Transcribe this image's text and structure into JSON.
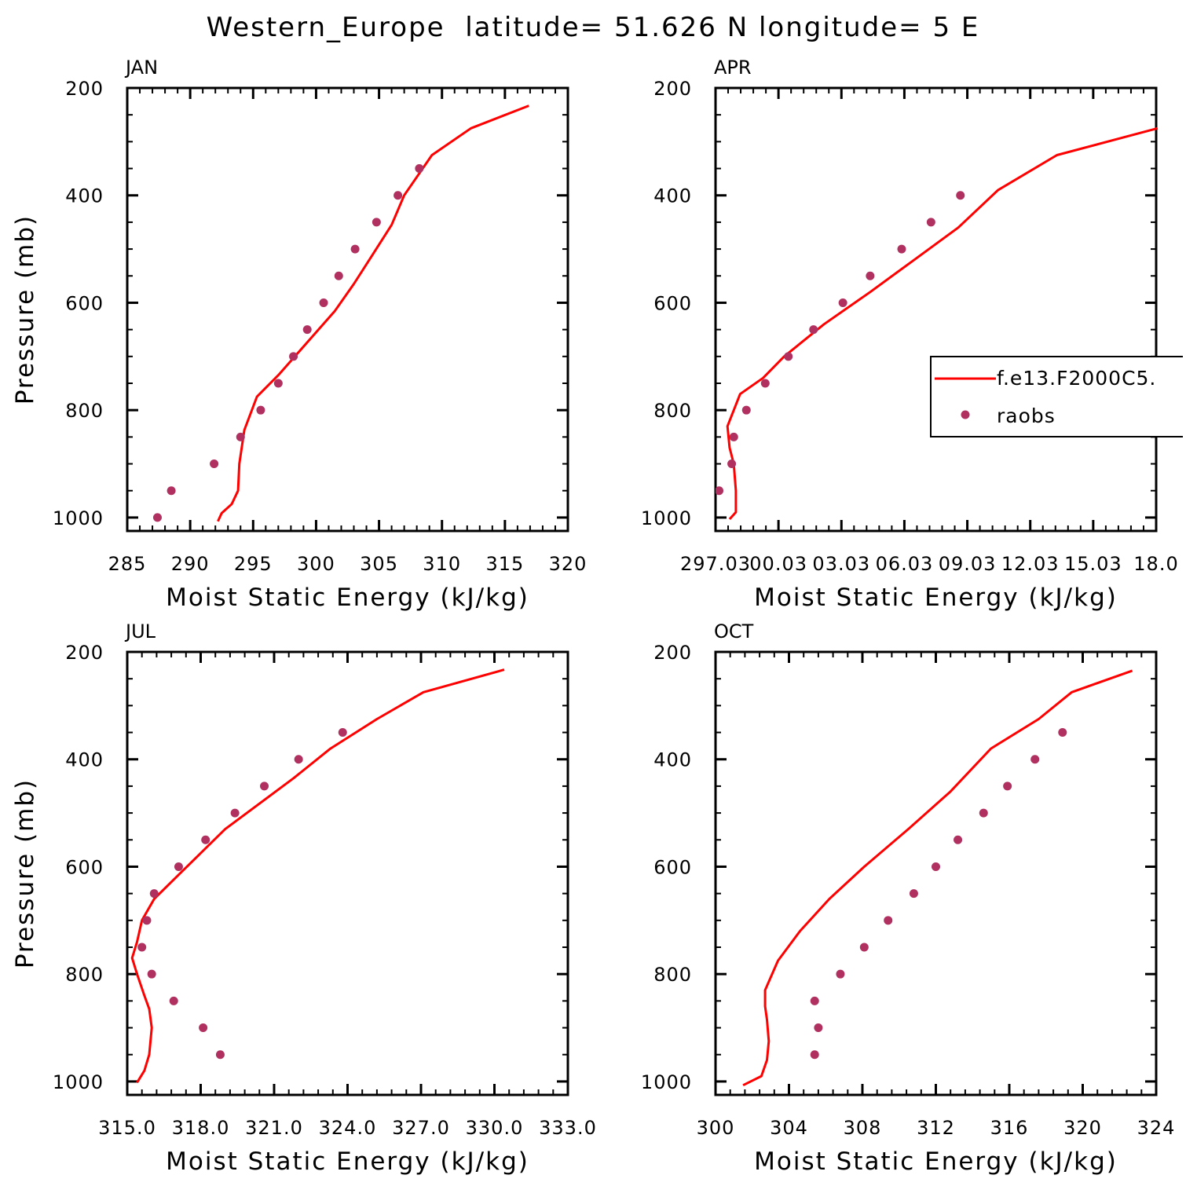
{
  "title": "Western_Europe  latitude= 51.626 N longitude= 5 E",
  "colors": {
    "model": "#ff0000",
    "obs": "#b03060",
    "axis": "#000000"
  },
  "legend": {
    "panel": 1,
    "entries": [
      {
        "label": "f.e13.F2000C5.",
        "style": "line"
      },
      {
        "label": "raobs",
        "style": "marker"
      }
    ]
  },
  "chart_data": [
    {
      "type": "line+scatter",
      "title": "JAN",
      "xlabel": "Moist Static Energy (kJ/kg)",
      "ylabel": "Pressure (mb)",
      "xlim": [
        285,
        320
      ],
      "ylim": [
        200,
        1025
      ],
      "xticks": [
        "285",
        "290",
        "295",
        "300",
        "305",
        "310",
        "315",
        "320"
      ],
      "yticks": [
        "200",
        "400",
        "600",
        "800",
        "1000"
      ],
      "series": [
        {
          "name": "f.e13.F2000C5.",
          "kind": "line",
          "x": [
            292.2,
            292.5,
            293.3,
            293.8,
            293.9,
            294.3,
            295.3,
            297.0,
            298.5,
            300.0,
            301.5,
            303.0,
            304.5,
            306.0,
            307.0,
            309.2,
            312.3,
            316.9
          ],
          "y": [
            1007,
            992,
            975,
            950,
            900,
            837,
            775,
            735,
            695,
            655,
            615,
            565,
            510,
            455,
            400,
            325,
            275,
            233
          ]
        },
        {
          "name": "raobs",
          "kind": "scatter",
          "x": [
            287.4,
            288.5,
            291.9,
            294.0,
            295.6,
            297.0,
            298.2,
            299.3,
            300.6,
            301.8,
            303.1,
            304.8,
            306.5,
            308.2
          ],
          "y": [
            1000,
            950,
            900,
            850,
            800,
            750,
            700,
            650,
            600,
            550,
            500,
            450,
            400,
            350
          ]
        }
      ]
    },
    {
      "type": "line+scatter",
      "title": "APR",
      "xlabel": "Moist Static Energy (kJ/kg)",
      "ylabel": "",
      "xlim": [
        297.03,
        318.03
      ],
      "ylim": [
        200,
        1025
      ],
      "xticks": [
        "297.03",
        "00.03",
        "03.03",
        "06.03",
        "09.03",
        "12.03",
        "15.03",
        "18.0"
      ],
      "yticks": [
        "200",
        "400",
        "600",
        "800",
        "1000"
      ],
      "series": [
        {
          "name": "f.e13.F2000C5.",
          "kind": "line",
          "x": [
            297.7,
            298.0,
            298.0,
            297.9,
            297.7,
            297.6,
            298.2,
            299.3,
            300.3,
            302.2,
            304.4,
            306.5,
            308.6,
            310.5,
            313.3,
            318.1
          ],
          "y": [
            1003,
            990,
            950,
            900,
            870,
            830,
            770,
            740,
            700,
            640,
            580,
            520,
            460,
            390,
            325,
            275
          ]
        },
        {
          "name": "raobs",
          "kind": "scatter",
          "x": [
            297.2,
            297.8,
            297.9,
            298.5,
            299.4,
            300.5,
            301.7,
            303.1,
            304.4,
            305.9,
            307.3,
            308.7
          ],
          "y": [
            950,
            900,
            850,
            800,
            750,
            700,
            650,
            600,
            550,
            500,
            450,
            400
          ]
        }
      ]
    },
    {
      "type": "line+scatter",
      "title": "JUL",
      "xlabel": "Moist Static Energy (kJ/kg)",
      "ylabel": "Pressure (mb)",
      "xlim": [
        315,
        333
      ],
      "ylim": [
        200,
        1025
      ],
      "xticks": [
        "315.0",
        "318.0",
        "321.0",
        "324.0",
        "327.0",
        "330.0",
        "333.0"
      ],
      "yticks": [
        "200",
        "400",
        "600",
        "800",
        "1000"
      ],
      "series": [
        {
          "name": "f.e13.F2000C5.",
          "kind": "line",
          "x": [
            315.4,
            315.7,
            315.9,
            316.0,
            315.9,
            315.7,
            315.4,
            315.2,
            315.4,
            315.6,
            316.1,
            317.1,
            319.0,
            321.8,
            323.3,
            325.2,
            327.1,
            330.4
          ],
          "y": [
            1002,
            980,
            950,
            900,
            865,
            840,
            800,
            770,
            740,
            700,
            660,
            615,
            530,
            435,
            380,
            325,
            275,
            233
          ]
        },
        {
          "name": "raobs",
          "kind": "scatter",
          "x": [
            318.8,
            318.1,
            316.9,
            316.0,
            315.6,
            315.8,
            316.1,
            317.1,
            318.2,
            319.4,
            320.6,
            322.0,
            323.8
          ],
          "y": [
            950,
            900,
            850,
            800,
            750,
            700,
            650,
            600,
            550,
            500,
            450,
            400,
            350
          ]
        }
      ]
    },
    {
      "type": "line+scatter",
      "title": "OCT",
      "xlabel": "Moist Static Energy (kJ/kg)",
      "ylabel": "",
      "xlim": [
        300,
        324
      ],
      "ylim": [
        200,
        1025
      ],
      "xticks": [
        "300",
        "304",
        "308",
        "312",
        "316",
        "320",
        "324"
      ],
      "yticks": [
        "200",
        "400",
        "600",
        "800",
        "1000"
      ],
      "series": [
        {
          "name": "f.e13.F2000C5.",
          "kind": "line",
          "x": [
            301.5,
            302.5,
            302.8,
            302.9,
            302.8,
            302.7,
            302.7,
            303.4,
            304.6,
            306.2,
            308.1,
            310.5,
            312.8,
            315.0,
            317.6,
            319.4,
            322.7
          ],
          "y": [
            1007,
            990,
            960,
            925,
            885,
            860,
            830,
            775,
            720,
            660,
            600,
            530,
            460,
            380,
            325,
            275,
            235
          ]
        },
        {
          "name": "raobs",
          "kind": "scatter",
          "x": [
            305.4,
            305.6,
            305.4,
            306.8,
            308.1,
            309.4,
            310.8,
            312.0,
            313.2,
            314.6,
            315.9,
            317.4,
            318.9
          ],
          "y": [
            950,
            900,
            850,
            800,
            750,
            700,
            650,
            600,
            550,
            500,
            450,
            400,
            350
          ]
        }
      ]
    }
  ]
}
